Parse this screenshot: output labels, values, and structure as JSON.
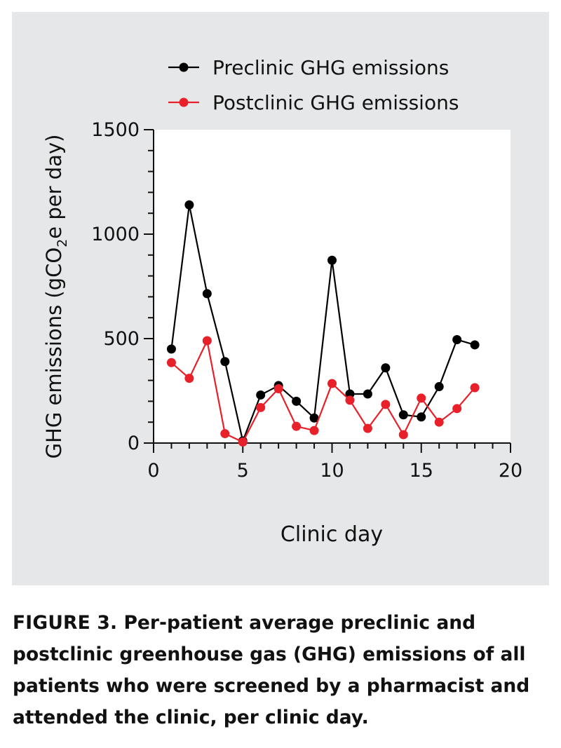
{
  "caption": {
    "label": "FIGURE 3.",
    "text": " Per-patient average preclinic and postclinic greenhouse gas (GHG) emissions of all patients who were screened by a pharmacist and attended the clinic, per clinic day."
  },
  "chart_data": {
    "type": "line",
    "title": "",
    "xlabel": "Clinic day",
    "ylabel": "GHG emissions (gCO₂e per day)",
    "ylabel_parts": [
      "GHG emissions (gCO",
      "2",
      "e per day)"
    ],
    "xlim": [
      0,
      20
    ],
    "ylim": [
      0,
      1500
    ],
    "xticks": [
      0,
      5,
      10,
      15,
      20
    ],
    "yticks": [
      0,
      500,
      1000,
      1500
    ],
    "grid": false,
    "legend_position": "top",
    "x": [
      1,
      2,
      3,
      4,
      5,
      6,
      7,
      8,
      9,
      10,
      11,
      12,
      13,
      14,
      15,
      16,
      17,
      18
    ],
    "series": [
      {
        "name": "Preclinic GHG emissions",
        "color": "#000000",
        "values": [
          450,
          1140,
          715,
          390,
          10,
          230,
          275,
          200,
          120,
          875,
          235,
          235,
          360,
          135,
          125,
          270,
          495,
          470
        ]
      },
      {
        "name": "Postclinic GHG emissions",
        "color": "#e8202a",
        "values": [
          385,
          310,
          490,
          45,
          5,
          170,
          260,
          80,
          60,
          285,
          205,
          70,
          185,
          40,
          215,
          100,
          165,
          265
        ]
      }
    ]
  }
}
